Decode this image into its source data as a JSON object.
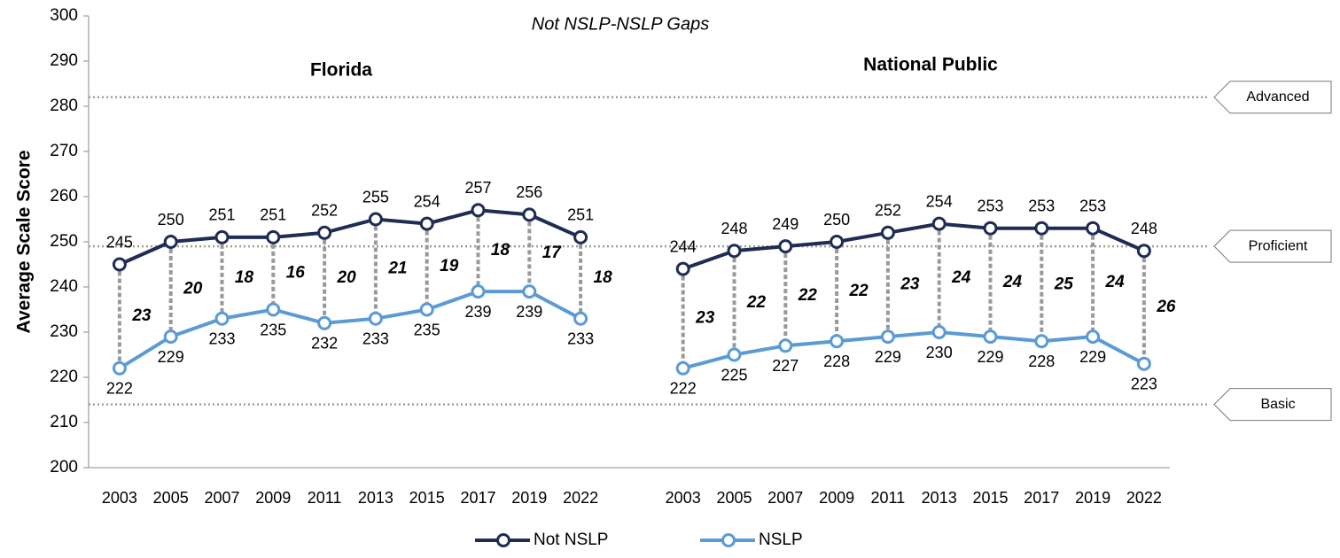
{
  "chart_data": {
    "type": "line",
    "subtitle": "Not NSLP-NSLP Gaps",
    "y_label": "Average Scale Score",
    "ylim": [
      200,
      300
    ],
    "yticks": [
      200,
      210,
      220,
      230,
      240,
      250,
      260,
      270,
      280,
      290,
      300
    ],
    "reference_lines": [
      {
        "label": "Advanced",
        "value": 282
      },
      {
        "label": "Proficient",
        "value": 249
      },
      {
        "label": "Basic",
        "value": 214
      }
    ],
    "series": [
      {
        "name": "Not NSLP",
        "color": "#1f2d54"
      },
      {
        "name": "NSLP",
        "color": "#5b9bd5"
      }
    ],
    "panels": [
      {
        "title": "Florida",
        "categories": [
          "2003",
          "2005",
          "2007",
          "2009",
          "2011",
          "2013",
          "2015",
          "2017",
          "2019",
          "2022"
        ],
        "values": [
          [
            245,
            250,
            251,
            251,
            252,
            255,
            254,
            257,
            256,
            251
          ],
          [
            222,
            229,
            233,
            235,
            232,
            233,
            235,
            239,
            239,
            233
          ]
        ],
        "gaps": [
          23,
          20,
          18,
          16,
          20,
          21,
          19,
          18,
          17,
          18
        ]
      },
      {
        "title": "National Public",
        "categories": [
          "2003",
          "2005",
          "2007",
          "2009",
          "2011",
          "2013",
          "2015",
          "2017",
          "2019",
          "2022"
        ],
        "values": [
          [
            244,
            248,
            249,
            250,
            252,
            254,
            253,
            253,
            253,
            248
          ],
          [
            222,
            225,
            227,
            228,
            229,
            230,
            229,
            228,
            229,
            223
          ]
        ],
        "gaps": [
          23,
          22,
          22,
          22,
          23,
          24,
          24,
          25,
          24,
          26
        ]
      }
    ]
  }
}
